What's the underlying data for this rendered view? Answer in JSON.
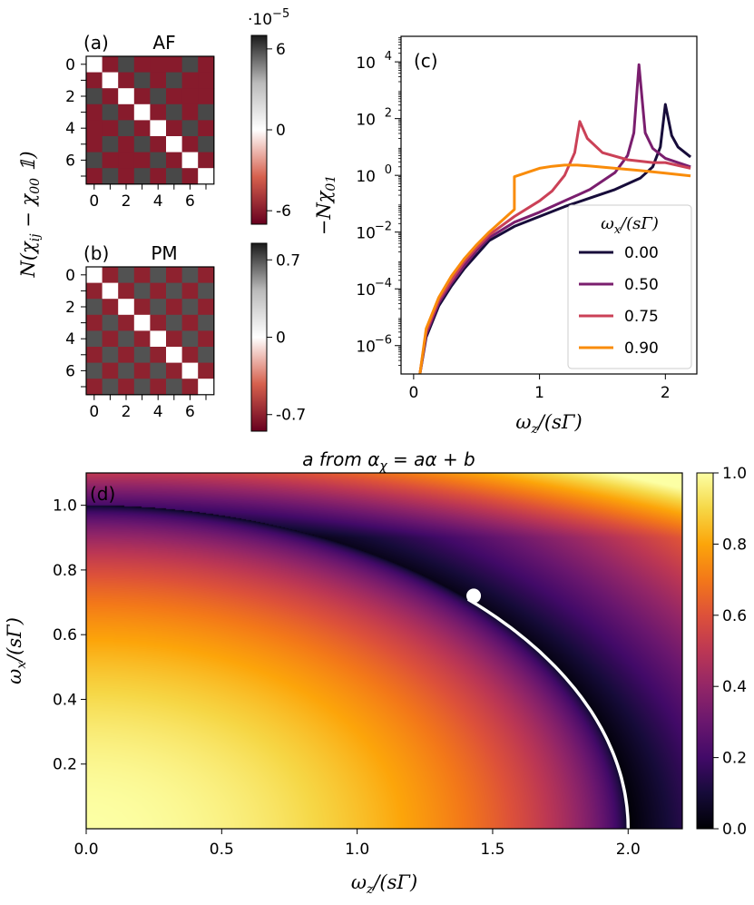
{
  "figure": {
    "ylabel_left": "N(χ_ij − χ_00 𝟙)",
    "ylabel_left_main": "N(χ",
    "ylabel_left_sub1": "ij",
    "ylabel_left_mid": " − χ",
    "ylabel_left_sub2": "00",
    "ylabel_left_end": " 𝟙)"
  },
  "chart_data": [
    {
      "id": "a",
      "type": "heatmap",
      "panel_label": "(a)",
      "title": "AF",
      "xticks": [
        "0",
        "2",
        "4",
        "6"
      ],
      "yticks": [
        "0",
        "2",
        "4",
        "6"
      ],
      "grid_size": 8,
      "colorbar": {
        "ticks": [
          "6",
          "0",
          "-6"
        ],
        "exponent": "·10",
        "exponent_power": "−5",
        "range": [
          -7,
          7
        ]
      },
      "matrix": [
        [
          null,
          -6,
          6,
          -6,
          -6,
          -6,
          6,
          -6
        ],
        [
          -6,
          null,
          -6,
          6,
          -6,
          6,
          -6,
          -6
        ],
        [
          6,
          -6,
          null,
          -6,
          6,
          -6,
          -6,
          -6
        ],
        [
          -6,
          6,
          -6,
          null,
          -6,
          6,
          -6,
          6
        ],
        [
          -6,
          -6,
          6,
          -6,
          null,
          -6,
          6,
          -6
        ],
        [
          -6,
          6,
          -6,
          6,
          -6,
          null,
          -6,
          6
        ],
        [
          6,
          -6,
          -6,
          -6,
          6,
          -6,
          null,
          -6
        ],
        [
          -6,
          6,
          -6,
          6,
          -6,
          6,
          -6,
          null
        ]
      ]
    },
    {
      "id": "b",
      "type": "heatmap",
      "panel_label": "(b)",
      "title": "PM",
      "xticks": [
        "0",
        "2",
        "4",
        "6"
      ],
      "yticks": [
        "0",
        "2",
        "4",
        "6"
      ],
      "grid_size": 8,
      "colorbar": {
        "ticks": [
          "0.7",
          "0",
          "-0.7"
        ],
        "range": [
          -0.85,
          0.85
        ]
      },
      "matrix": [
        [
          null,
          -0.7,
          0.7,
          -0.7,
          0.7,
          -0.7,
          0.7,
          -0.7
        ],
        [
          -0.7,
          null,
          -0.7,
          0.7,
          -0.7,
          0.7,
          -0.7,
          0.7
        ],
        [
          0.7,
          -0.7,
          null,
          -0.7,
          0.7,
          -0.7,
          0.7,
          -0.7
        ],
        [
          -0.7,
          0.7,
          -0.7,
          null,
          -0.7,
          0.7,
          -0.7,
          0.7
        ],
        [
          0.7,
          -0.7,
          0.7,
          -0.7,
          null,
          -0.7,
          0.7,
          -0.7
        ],
        [
          -0.7,
          0.7,
          -0.7,
          0.7,
          -0.7,
          null,
          -0.7,
          0.7
        ],
        [
          0.7,
          -0.7,
          0.7,
          -0.7,
          0.7,
          -0.7,
          null,
          -0.7
        ],
        [
          -0.7,
          0.7,
          -0.7,
          0.7,
          -0.7,
          0.7,
          -0.7,
          null
        ]
      ]
    },
    {
      "id": "c",
      "type": "line",
      "panel_label": "(c)",
      "yscale": "log",
      "xlim": [
        -0.1,
        2.25
      ],
      "ylim_log10": [
        -7,
        4.9
      ],
      "xticks": [
        "0",
        "1",
        "2"
      ],
      "yticks": [
        {
          "base": "10",
          "exp": "4",
          "v": 4
        },
        {
          "base": "10",
          "exp": "2",
          "v": 2
        },
        {
          "base": "10",
          "exp": "0",
          "v": 0
        },
        {
          "base": "10",
          "exp": "−2",
          "v": -2
        },
        {
          "base": "10",
          "exp": "−4",
          "v": -4
        },
        {
          "base": "10",
          "exp": "−6",
          "v": -6
        }
      ],
      "xlabel": "ω_z/(sΓ)",
      "ylabel": "−Nχ_01",
      "legend_title": "ω_x/(sΓ)",
      "legend_position": "lower-right",
      "series": [
        {
          "name": "0.00",
          "color": "#170c3a",
          "wx": 0.0,
          "cusp_y": 2.5,
          "points": [
            [
              0.05,
              -7
            ],
            [
              0.1,
              -5.7
            ],
            [
              0.2,
              -4.6
            ],
            [
              0.3,
              -3.9
            ],
            [
              0.4,
              -3.3
            ],
            [
              0.5,
              -2.8
            ],
            [
              0.6,
              -2.3
            ],
            [
              0.8,
              -1.8
            ],
            [
              1.0,
              -1.45
            ],
            [
              1.2,
              -1.1
            ],
            [
              1.4,
              -0.8
            ],
            [
              1.6,
              -0.5
            ],
            [
              1.8,
              -0.1
            ],
            [
              1.9,
              0.3
            ],
            [
              1.96,
              1.0
            ],
            [
              2.0,
              2.5
            ],
            [
              2.05,
              1.4
            ],
            [
              2.1,
              1.0
            ],
            [
              2.2,
              0.65
            ]
          ]
        },
        {
          "name": "0.50",
          "color": "#7a1e6e",
          "wx": 0.5,
          "cusp_y": 3.9,
          "points": [
            [
              0.05,
              -7
            ],
            [
              0.1,
              -5.6
            ],
            [
              0.2,
              -4.5
            ],
            [
              0.3,
              -3.8
            ],
            [
              0.4,
              -3.2
            ],
            [
              0.5,
              -2.65
            ],
            [
              0.6,
              -2.2
            ],
            [
              0.8,
              -1.65
            ],
            [
              1.0,
              -1.3
            ],
            [
              1.2,
              -0.9
            ],
            [
              1.4,
              -0.5
            ],
            [
              1.6,
              0.1
            ],
            [
              1.7,
              0.7
            ],
            [
              1.75,
              1.5
            ],
            [
              1.79,
              3.9
            ],
            [
              1.84,
              1.5
            ],
            [
              1.9,
              0.95
            ],
            [
              2.0,
              0.6
            ],
            [
              2.2,
              0.3
            ]
          ]
        },
        {
          "name": "0.75",
          "color": "#cb4157",
          "wx": 0.75,
          "cusp_y": 1.9,
          "points": [
            [
              0.05,
              -7
            ],
            [
              0.1,
              -5.5
            ],
            [
              0.2,
              -4.4
            ],
            [
              0.3,
              -3.7
            ],
            [
              0.4,
              -3.05
            ],
            [
              0.5,
              -2.55
            ],
            [
              0.6,
              -2.1
            ],
            [
              0.8,
              -1.45
            ],
            [
              1.0,
              -0.9
            ],
            [
              1.1,
              -0.55
            ],
            [
              1.2,
              0.0
            ],
            [
              1.28,
              0.8
            ],
            [
              1.32,
              1.9
            ],
            [
              1.38,
              1.3
            ],
            [
              1.5,
              0.8
            ],
            [
              1.7,
              0.55
            ],
            [
              1.9,
              0.45
            ],
            [
              2.0,
              0.45
            ],
            [
              2.2,
              0.25
            ]
          ]
        },
        {
          "name": "0.90",
          "color": "#f98c0a",
          "wx": 0.9,
          "cusp_y": 0.05,
          "points": [
            [
              0.05,
              -7
            ],
            [
              0.1,
              -5.4
            ],
            [
              0.2,
              -4.3
            ],
            [
              0.3,
              -3.55
            ],
            [
              0.4,
              -2.95
            ],
            [
              0.5,
              -2.45
            ],
            [
              0.6,
              -2.0
            ],
            [
              0.7,
              -1.6
            ],
            [
              0.8,
              -1.2
            ],
            [
              0.8,
              -0.05
            ],
            [
              0.9,
              0.1
            ],
            [
              1.0,
              0.25
            ],
            [
              1.1,
              0.32
            ],
            [
              1.2,
              0.36
            ],
            [
              1.3,
              0.36
            ],
            [
              1.4,
              0.33
            ],
            [
              1.6,
              0.25
            ],
            [
              1.8,
              0.17
            ],
            [
              2.0,
              0.08
            ],
            [
              2.2,
              -0.02
            ]
          ]
        }
      ]
    },
    {
      "id": "d",
      "type": "heatmap",
      "panel_label": "(d)",
      "title_main": "a from α",
      "title_sub": "χ",
      "title_rest": " = aα + b",
      "xlim": [
        0,
        2.2
      ],
      "ylim": [
        0,
        1.1
      ],
      "xticks": [
        "0.0",
        "0.5",
        "1.0",
        "1.5",
        "2.0"
      ],
      "xtick_values": [
        0,
        0.5,
        1.0,
        1.5,
        2.0
      ],
      "yticks": [
        "1.0",
        "0.8",
        "0.6",
        "0.4",
        "0.2"
      ],
      "ytick_values": [
        1.0,
        0.8,
        0.6,
        0.4,
        0.2
      ],
      "xlabel": "ω_z/(sΓ)",
      "ylabel": "ω_x/(sΓ)",
      "colorbar": {
        "ticks": [
          "1.0",
          "0.8",
          "0.6",
          "0.4",
          "0.2",
          "0.0"
        ],
        "tick_values": [
          1.0,
          0.8,
          0.6,
          0.4,
          0.2,
          0.0
        ],
        "range": [
          0,
          1
        ]
      },
      "critical_line": {
        "wz_start": 1.43,
        "wx_start": 0.72,
        "wz_end": 2.0,
        "wx_end": 0.0
      },
      "marker": {
        "wz": 1.43,
        "wx": 0.72
      }
    }
  ]
}
